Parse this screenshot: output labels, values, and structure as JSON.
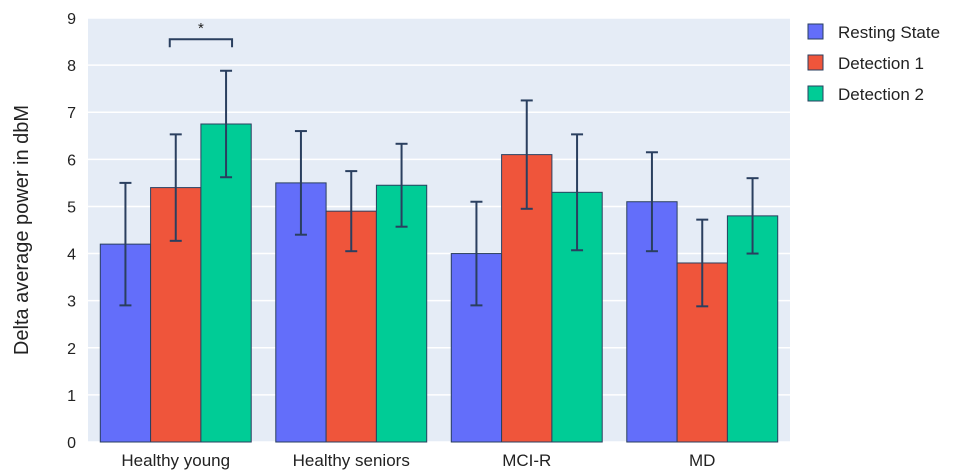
{
  "chart_data": {
    "type": "bar",
    "title": "",
    "xlabel": "",
    "ylabel": "Delta average power in dbM",
    "ylim": [
      0,
      9
    ],
    "yticks": [
      0,
      1,
      2,
      3,
      4,
      5,
      6,
      7,
      8,
      9
    ],
    "grid": true,
    "legend_position": "top-right",
    "categories": [
      "Healthy young",
      "Healthy seniors",
      "MCI-R",
      "MD"
    ],
    "series": [
      {
        "name": "Resting State",
        "color": "#636efa",
        "values": [
          4.2,
          5.5,
          4.0,
          5.1
        ],
        "error": [
          1.3,
          1.1,
          1.1,
          1.05
        ]
      },
      {
        "name": "Detection 1",
        "color": "#ef553b",
        "values": [
          5.4,
          4.9,
          6.1,
          3.8
        ],
        "error": [
          1.13,
          0.85,
          1.15,
          0.92
        ]
      },
      {
        "name": "Detection 2",
        "color": "#00cc96",
        "values": [
          6.75,
          5.45,
          5.3,
          4.8
        ],
        "error": [
          1.13,
          0.88,
          1.23,
          0.8
        ]
      }
    ],
    "annotations": [
      {
        "text": "*",
        "category": "Healthy young",
        "from_series": 1,
        "to_series": 2,
        "y": 8.55
      }
    ]
  }
}
